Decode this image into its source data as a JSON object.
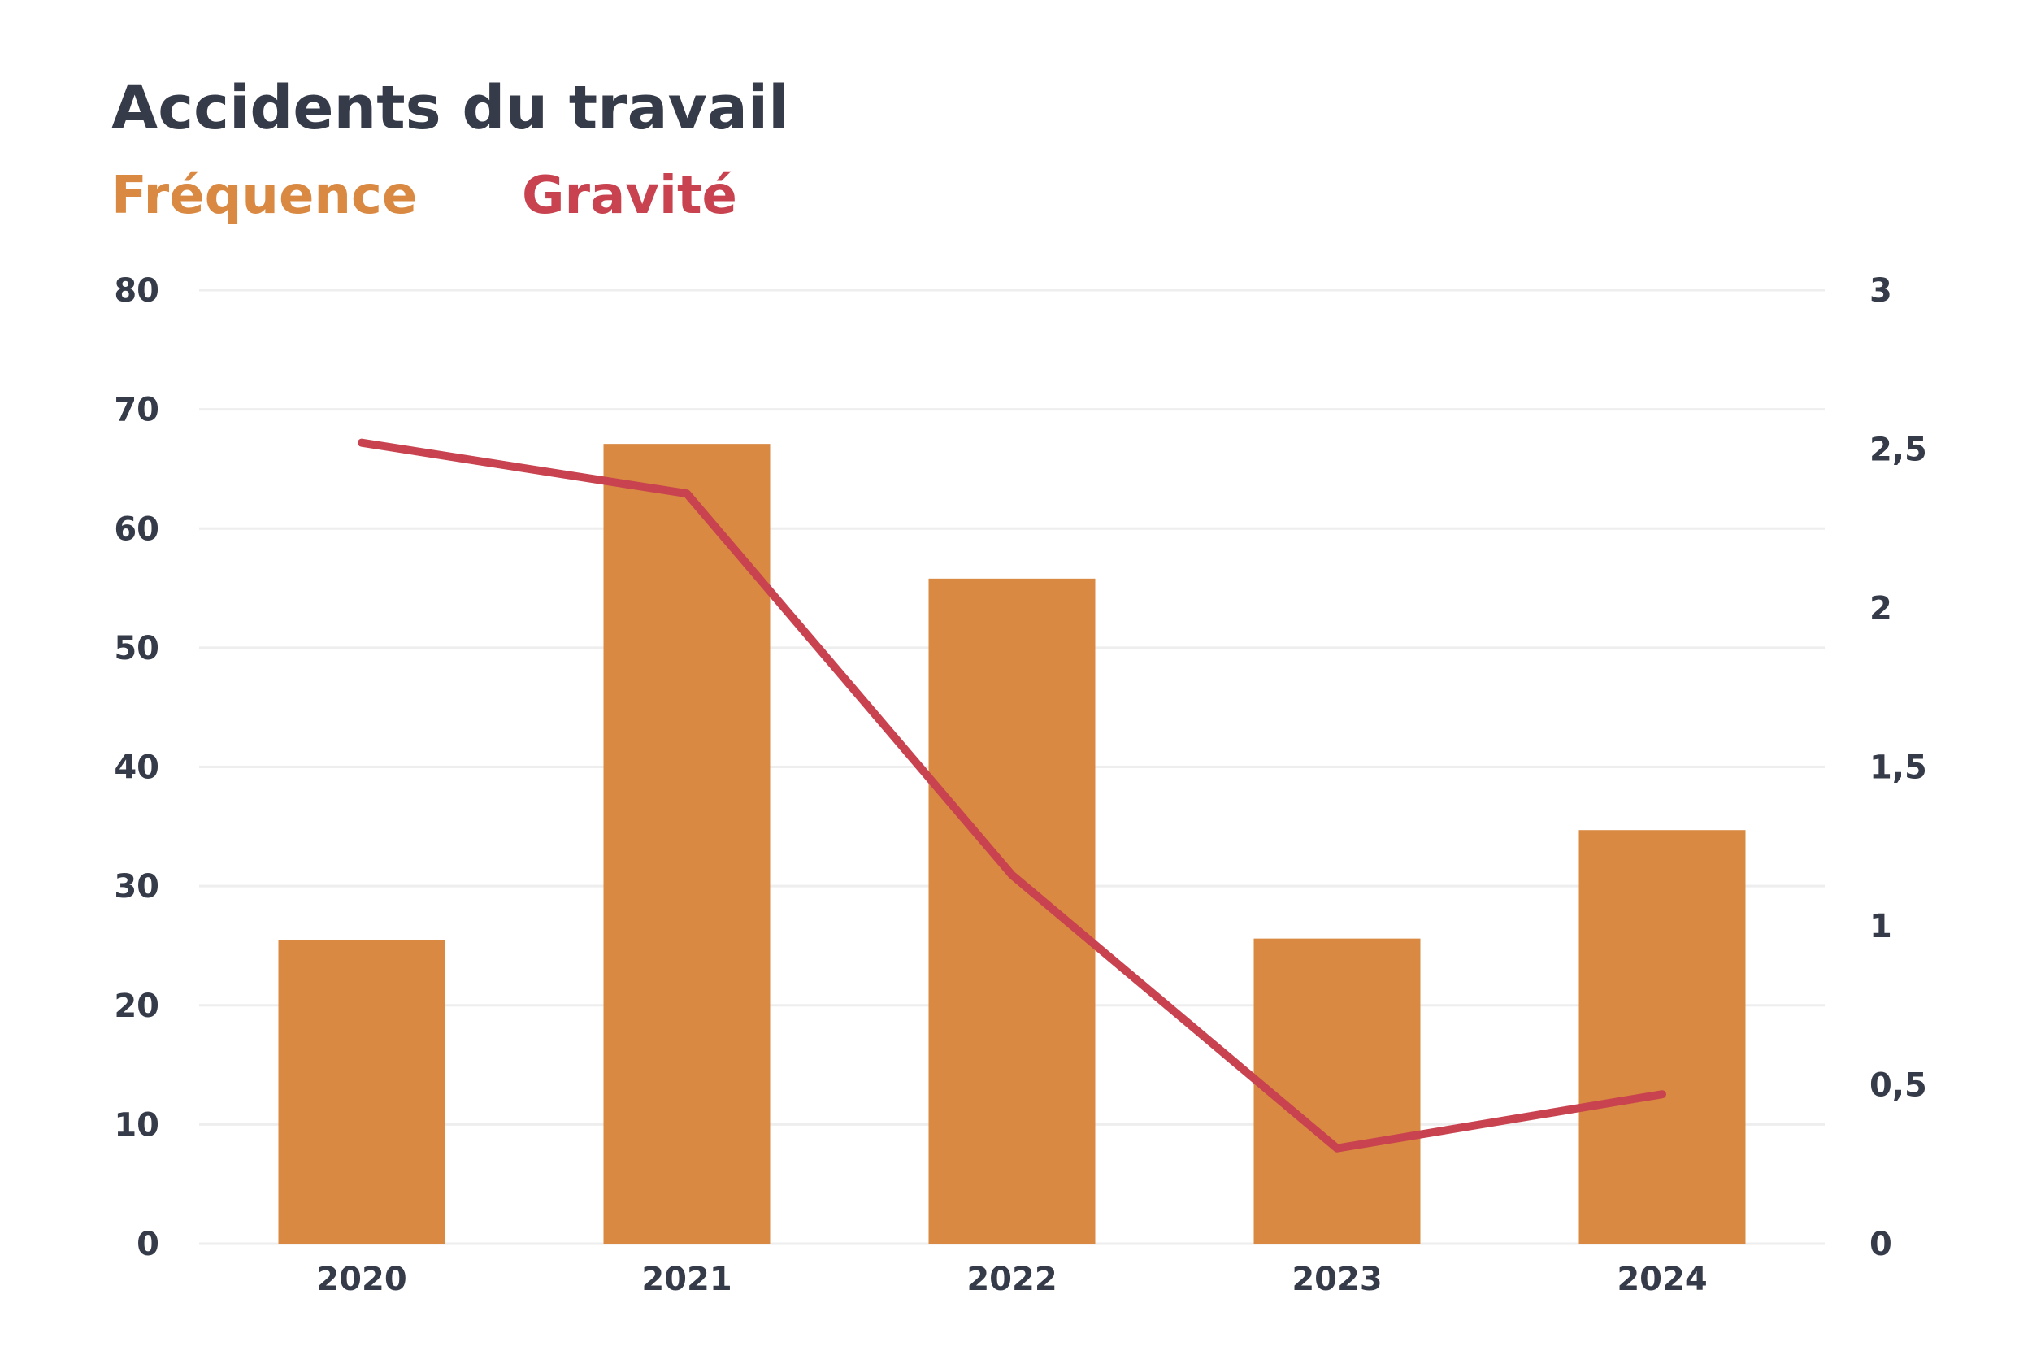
{
  "chart_data": {
    "type": "bar",
    "title": "Accidents du travail",
    "categories": [
      "2020",
      "2021",
      "2022",
      "2023",
      "2024"
    ],
    "series": [
      {
        "name": "Fréquence",
        "type": "bar",
        "axis": "left",
        "color": "#D98942",
        "values": [
          25.5,
          67.1,
          55.8,
          25.6,
          34.7
        ]
      },
      {
        "name": "Gravité",
        "type": "line",
        "axis": "right",
        "color": "#C8434F",
        "values": [
          2.52,
          2.36,
          1.16,
          0.3,
          0.47
        ]
      }
    ],
    "y_left": {
      "min": 0,
      "max": 80,
      "ticks": [
        "0",
        "10",
        "20",
        "30",
        "40",
        "50",
        "60",
        "70",
        "80"
      ]
    },
    "y_right": {
      "min": 0,
      "max": 3,
      "ticks": [
        "0",
        "0,5",
        "1",
        "1,5",
        "2",
        "2,5",
        "3"
      ]
    },
    "grid": true,
    "legend_position": "top-left",
    "text_color": "#363B4A",
    "grid_color": "#EEEEEE"
  }
}
